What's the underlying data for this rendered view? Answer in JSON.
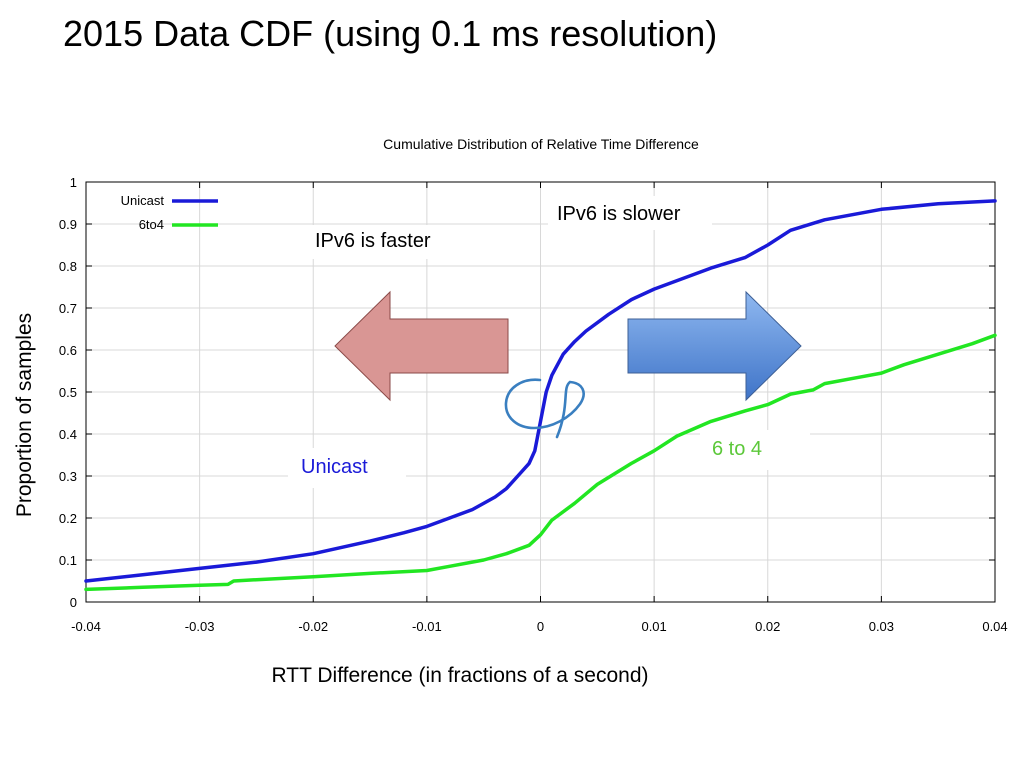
{
  "slide": {
    "title": "2015 Data CDF (using 0.1 ms resolution)"
  },
  "colors": {
    "unicast": "#1a1ad8",
    "sixto4": "#22e622",
    "grid": "#d8d8d8",
    "arrow_left_fill": "#d99694",
    "arrow_right_fill": "#5f8fd8",
    "scribble": "#3a7fc0",
    "annot_unicast": "#1a1ad8",
    "annot_6to4": "#5cc83a"
  },
  "annotations": {
    "faster": "IPv6 is faster",
    "slower": "IPv6 is slower",
    "unicast": "Unicast",
    "sixto4": "6 to 4"
  },
  "chart_data": {
    "type": "line",
    "title": "Cumulative Distribution of Relative Time Difference",
    "xlabel": "RTT Difference (in fractions of a second)",
    "ylabel": "Proportion of samples",
    "xlim": [
      -0.04,
      0.04
    ],
    "ylim": [
      0,
      1
    ],
    "xticks": [
      -0.04,
      -0.03,
      -0.02,
      -0.01,
      0,
      0.01,
      0.02,
      0.03,
      0.04
    ],
    "xtick_labels": [
      "-0.04",
      "-0.03",
      "-0.02",
      "-0.01",
      "0",
      "0.01",
      "0.02",
      "0.03",
      "0.04"
    ],
    "yticks": [
      0,
      0.1,
      0.2,
      0.3,
      0.4,
      0.5,
      0.6,
      0.7,
      0.8,
      0.9,
      1
    ],
    "ytick_labels": [
      "0",
      "0.1",
      "0.2",
      "0.3",
      "0.4",
      "0.5",
      "0.6",
      "0.7",
      "0.8",
      "0.9",
      "1"
    ],
    "grid": true,
    "legend": "top-left",
    "series": [
      {
        "name": "Unicast",
        "color": "#1a1ad8",
        "x": [
          -0.04,
          -0.035,
          -0.03,
          -0.025,
          -0.02,
          -0.015,
          -0.012,
          -0.01,
          -0.008,
          -0.006,
          -0.004,
          -0.003,
          -0.002,
          -0.001,
          -0.0005,
          0,
          0.0005,
          0.001,
          0.002,
          0.003,
          0.004,
          0.006,
          0.008,
          0.01,
          0.015,
          0.018,
          0.02,
          0.022,
          0.025,
          0.03,
          0.035,
          0.04
        ],
        "y": [
          0.05,
          0.065,
          0.08,
          0.095,
          0.115,
          0.145,
          0.165,
          0.18,
          0.2,
          0.22,
          0.25,
          0.27,
          0.3,
          0.33,
          0.36,
          0.43,
          0.5,
          0.54,
          0.59,
          0.62,
          0.645,
          0.685,
          0.72,
          0.745,
          0.795,
          0.82,
          0.85,
          0.885,
          0.91,
          0.935,
          0.948,
          0.955
        ]
      },
      {
        "name": "6to4",
        "color": "#22e622",
        "x": [
          -0.04,
          -0.035,
          -0.03,
          -0.0275,
          -0.027,
          -0.025,
          -0.02,
          -0.015,
          -0.01,
          -0.008,
          -0.005,
          -0.003,
          -0.001,
          0,
          0.001,
          0.003,
          0.005,
          0.008,
          0.01,
          0.012,
          0.015,
          0.018,
          0.02,
          0.022,
          0.024,
          0.025,
          0.028,
          0.03,
          0.032,
          0.035,
          0.038,
          0.04
        ],
        "y": [
          0.03,
          0.035,
          0.04,
          0.042,
          0.05,
          0.053,
          0.06,
          0.068,
          0.075,
          0.085,
          0.1,
          0.115,
          0.135,
          0.16,
          0.195,
          0.235,
          0.28,
          0.33,
          0.36,
          0.395,
          0.43,
          0.455,
          0.47,
          0.495,
          0.505,
          0.52,
          0.535,
          0.545,
          0.565,
          0.59,
          0.615,
          0.635
        ]
      }
    ]
  }
}
